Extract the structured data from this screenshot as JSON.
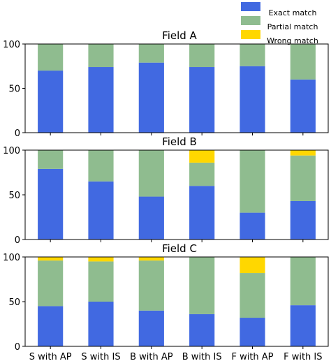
{
  "chart_data": {
    "type": "bar",
    "stacked": true,
    "categories": [
      "S with AP",
      "S with IS",
      "B with AP",
      "B with IS",
      "F with AP",
      "F with IS"
    ],
    "legend": {
      "placement": "top-right",
      "entries": [
        {
          "name": "Exact match",
          "color": "#4169e1"
        },
        {
          "name": "Partial match",
          "color": "#8fbc8f"
        },
        {
          "name": "Wrong match",
          "color": "#ffd700"
        }
      ]
    },
    "ylim": [
      0,
      100
    ],
    "yticks": [
      0,
      50,
      100
    ],
    "grid": false,
    "panels": [
      {
        "title": "Field A",
        "series": [
          {
            "name": "Exact match",
            "values": [
              70,
              74,
              79,
              74,
              75,
              60
            ]
          },
          {
            "name": "Partial match",
            "values": [
              30,
              26,
              21,
              26,
              25,
              40
            ]
          },
          {
            "name": "Wrong match",
            "values": [
              0,
              0,
              0,
              0,
              0,
              0
            ]
          }
        ]
      },
      {
        "title": "Field B",
        "series": [
          {
            "name": "Exact match",
            "values": [
              79,
              65,
              48,
              60,
              30,
              43
            ]
          },
          {
            "name": "Partial match",
            "values": [
              21,
              35,
              52,
              26,
              70,
              51
            ]
          },
          {
            "name": "Wrong match",
            "values": [
              0,
              0,
              0,
              14,
              0,
              6
            ]
          }
        ]
      },
      {
        "title": "Field C",
        "series": [
          {
            "name": "Exact match",
            "values": [
              45,
              50,
              40,
              36,
              32,
              46
            ]
          },
          {
            "name": "Partial match",
            "values": [
              51,
              45,
              56,
              64,
              50,
              54
            ]
          },
          {
            "name": "Wrong match",
            "values": [
              4,
              5,
              4,
              0,
              18,
              0
            ]
          }
        ]
      }
    ]
  }
}
